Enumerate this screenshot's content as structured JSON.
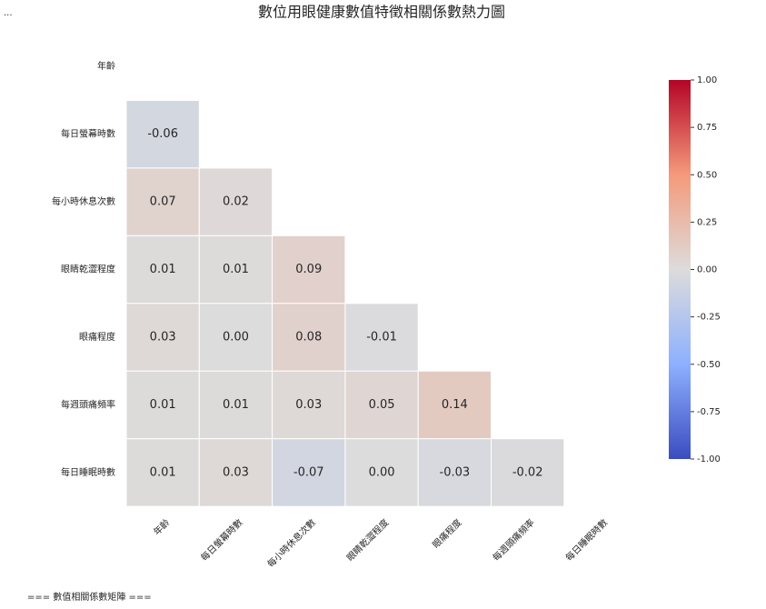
{
  "ellipsis": "...",
  "console_text": "=== 數值相關係數矩陣 ===",
  "chart_data": {
    "type": "heatmap",
    "title": "數位用眼健康數值特徵相關係數熱力圖",
    "categories": [
      "年齡",
      "每日螢幕時數",
      "每小時休息次數",
      "眼睛乾澀程度",
      "眼痛程度",
      "每週頭痛頻率",
      "每日睡眠時數"
    ],
    "values": [
      [
        null,
        null,
        null,
        null,
        null,
        null,
        null
      ],
      [
        -0.06,
        null,
        null,
        null,
        null,
        null,
        null
      ],
      [
        0.07,
        0.02,
        null,
        null,
        null,
        null,
        null
      ],
      [
        0.01,
        0.01,
        0.09,
        null,
        null,
        null,
        null
      ],
      [
        0.03,
        0,
        0.08,
        -0.01,
        null,
        null,
        null
      ],
      [
        0.01,
        0.01,
        0.03,
        0.05,
        0.14,
        null,
        null
      ],
      [
        0.01,
        0.03,
        -0.07,
        0,
        -0.03,
        -0.02,
        null
      ]
    ],
    "value_labels": [
      [
        null,
        null,
        null,
        null,
        null,
        null,
        null
      ],
      [
        "-0.06",
        null,
        null,
        null,
        null,
        null,
        null
      ],
      [
        "0.07",
        "0.02",
        null,
        null,
        null,
        null,
        null
      ],
      [
        "0.01",
        "0.01",
        "0.09",
        null,
        null,
        null,
        null
      ],
      [
        "0.03",
        "0.00",
        "0.08",
        "-0.01",
        null,
        null,
        null
      ],
      [
        "0.01",
        "0.01",
        "0.03",
        "0.05",
        "0.14",
        null,
        null
      ],
      [
        "0.01",
        "0.03",
        "-0.07",
        "0.00",
        "-0.03",
        "-0.02",
        null
      ]
    ],
    "colormap": [
      "#3b4cc0",
      "#8db0fe",
      "#dddcdc",
      "#f49a7b",
      "#b40426"
    ],
    "clim": [
      -1,
      1
    ],
    "cticks": [
      {
        "value": -1,
        "label": "-1.00"
      },
      {
        "value": -0.75,
        "label": "-0.75"
      },
      {
        "value": -0.5,
        "label": "-0.50"
      },
      {
        "value": -0.25,
        "label": "-0.25"
      },
      {
        "value": 0,
        "label": "0.00"
      },
      {
        "value": 0.25,
        "label": "0.25"
      },
      {
        "value": 0.5,
        "label": "0.50"
      },
      {
        "value": 0.75,
        "label": "0.75"
      },
      {
        "value": 1,
        "label": "1.00"
      }
    ]
  }
}
